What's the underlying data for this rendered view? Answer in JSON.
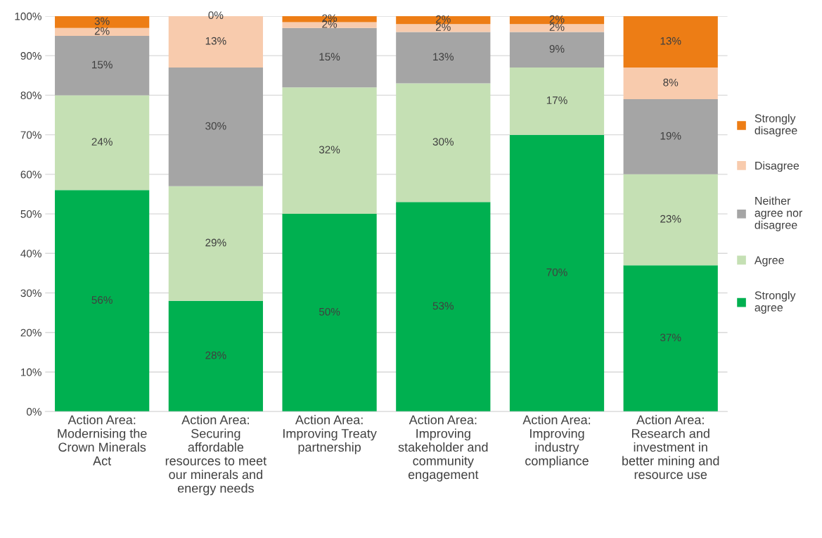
{
  "chart_data": {
    "type": "bar",
    "stacked": true,
    "categories": [
      "Action Area:\nModernising the\nCrown Minerals\nAct",
      "Action Area:\nSecuring\naffordable\nresources to meet\nour minerals and\nenergy needs",
      "Action Area:\nImproving Treaty\npartnership",
      "Action Area:\nImproving\nstakeholder and\ncommunity\nengagement",
      "Action Area:\nImproving\nindustry\ncompliance",
      "Action Area:\nResearch and\ninvestment in\nbetter mining and\nresource use"
    ],
    "series": [
      {
        "name": "Strongly\nagree",
        "color": "#00b050",
        "values": [
          56,
          28,
          50,
          53,
          70,
          37
        ],
        "value_labels": [
          "56%",
          "28%",
          "50%",
          "53%",
          "70%",
          "37%"
        ]
      },
      {
        "name": "Agree",
        "color": "#c5e0b4",
        "values": [
          24,
          29,
          32,
          30,
          17,
          23
        ],
        "value_labels": [
          "24%",
          "29%",
          "32%",
          "30%",
          "17%",
          "23%"
        ]
      },
      {
        "name": "Neither\nagree nor\ndisagree",
        "color": "#a5a5a5",
        "values": [
          15,
          30,
          15,
          13,
          9,
          19
        ],
        "value_labels": [
          "15%",
          "30%",
          "15%",
          "13%",
          "9%",
          "19%"
        ]
      },
      {
        "name": "Disagree",
        "color": "#f8cbad",
        "values": [
          2,
          13,
          1.5,
          2,
          2,
          8
        ],
        "value_labels": [
          "2%",
          "13%",
          "2%",
          "2%",
          "2%",
          "8%"
        ]
      },
      {
        "name": "Strongly\ndisagree",
        "color": "#ed7d15",
        "values": [
          3,
          0,
          1.5,
          2,
          2,
          13
        ],
        "value_labels": [
          "3%",
          "0%",
          "2%",
          "2%",
          "2%",
          "13%"
        ]
      }
    ],
    "ylim": [
      0,
      100
    ],
    "yticks": [
      {
        "value": 0,
        "label": "0%"
      },
      {
        "value": 10,
        "label": "10%"
      },
      {
        "value": 20,
        "label": "20%"
      },
      {
        "value": 30,
        "label": "30%"
      },
      {
        "value": 40,
        "label": "40%"
      },
      {
        "value": 50,
        "label": "50%"
      },
      {
        "value": 60,
        "label": "60%"
      },
      {
        "value": 70,
        "label": "70%"
      },
      {
        "value": 80,
        "label": "80%"
      },
      {
        "value": 90,
        "label": "90%"
      },
      {
        "value": 100,
        "label": "100%"
      }
    ],
    "grid": "y",
    "legend": "right"
  }
}
